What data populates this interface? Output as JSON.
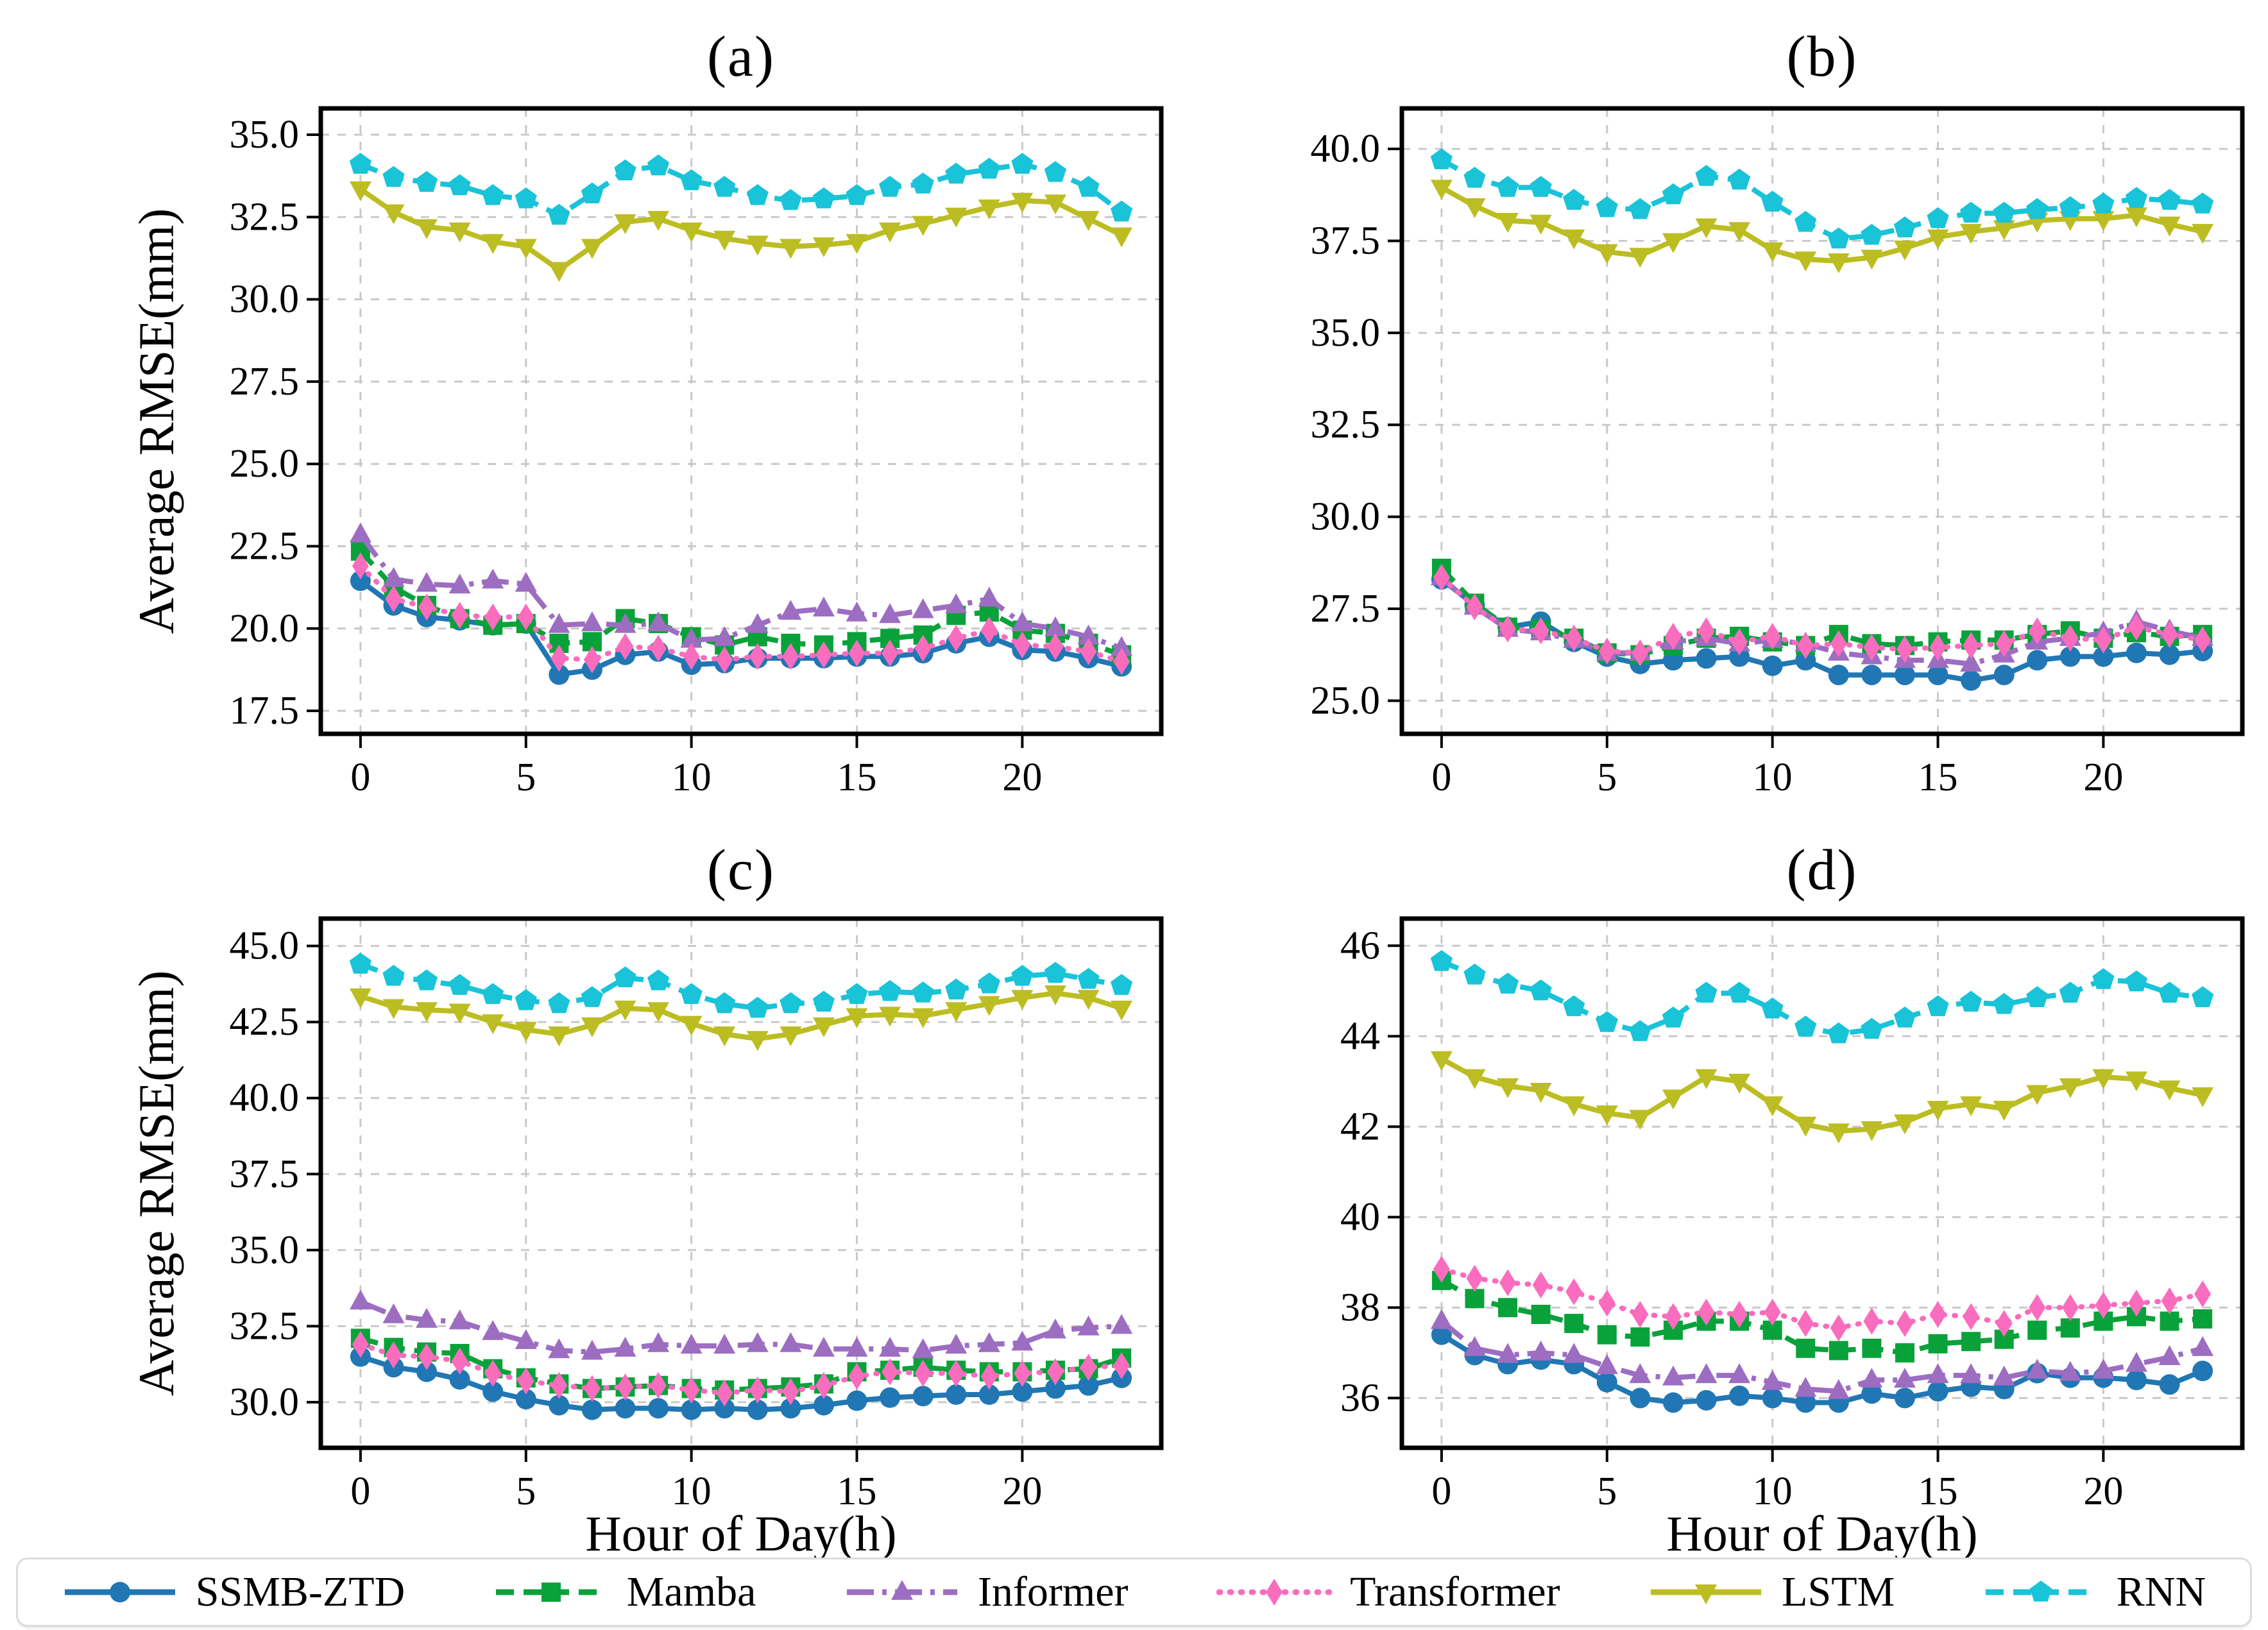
{
  "page": {
    "background": "#ffffff",
    "grid_color": "#c9c9c9",
    "axis_color": "#000000"
  },
  "axis_titles": {
    "ylabel": "Average RMSE(mm)",
    "xlabel": "Hour of Day(h)"
  },
  "series_defs": [
    {
      "name": "SSMB-ZTD",
      "color": "#2077b4",
      "linestyle": "solid",
      "marker": "circle"
    },
    {
      "name": "Mamba",
      "color": "#09a23a",
      "linestyle": "dashed",
      "marker": "square"
    },
    {
      "name": "Informer",
      "color": "#9d6dc2",
      "linestyle": "dashdot",
      "marker": "triangle-up"
    },
    {
      "name": "Transformer",
      "color": "#fa6cbd",
      "linestyle": "dotted",
      "marker": "diamond"
    },
    {
      "name": "LSTM",
      "color": "#bcbd22",
      "linestyle": "solid",
      "marker": "triangle-down"
    },
    {
      "name": "RNN",
      "color": "#19c3d8",
      "linestyle": "dashed",
      "marker": "pentagon"
    }
  ],
  "legend": {
    "items": [
      "SSMB-ZTD",
      "Mamba",
      "Informer",
      "Transformer",
      "LSTM",
      "RNN"
    ]
  },
  "chart_data": [
    {
      "type": "line",
      "title": "(a)",
      "ylabel": "Average RMSE(mm)",
      "xlabel": "",
      "x": [
        0,
        1,
        2,
        3,
        4,
        5,
        6,
        7,
        8,
        9,
        10,
        11,
        12,
        13,
        14,
        15,
        16,
        17,
        18,
        19,
        20,
        21,
        22,
        23
      ],
      "xlim": [
        -1.2,
        24.2
      ],
      "xticks": [
        0,
        5,
        10,
        15,
        20
      ],
      "xtick_labels": [
        "0",
        "5",
        "10",
        "15",
        "20"
      ],
      "ylim": [
        16.8,
        35.8
      ],
      "yticks": [
        17.5,
        20.0,
        22.5,
        25.0,
        27.5,
        30.0,
        32.5,
        35.0
      ],
      "ytick_labels": [
        "17.5",
        "20.0",
        "22.5",
        "25.0",
        "27.5",
        "30.0",
        "32.5",
        "35.0"
      ],
      "grid": true,
      "series": [
        {
          "name": "SSMB-ZTD",
          "values": [
            21.45,
            20.7,
            20.35,
            20.25,
            20.1,
            20.15,
            18.6,
            18.75,
            19.2,
            19.3,
            18.9,
            18.95,
            19.1,
            19.1,
            19.1,
            19.15,
            19.15,
            19.25,
            19.55,
            19.75,
            19.35,
            19.3,
            19.1,
            18.85
          ]
        },
        {
          "name": "Mamba",
          "values": [
            22.35,
            21.25,
            20.7,
            20.3,
            20.1,
            20.15,
            19.55,
            19.6,
            20.3,
            20.15,
            19.75,
            19.5,
            19.75,
            19.55,
            19.5,
            19.6,
            19.7,
            19.8,
            20.4,
            20.5,
            19.95,
            19.85,
            19.55,
            19.2
          ]
        },
        {
          "name": "Informer",
          "values": [
            22.85,
            21.5,
            21.35,
            21.3,
            21.45,
            21.35,
            20.1,
            20.15,
            20.1,
            20.15,
            19.65,
            19.7,
            20.1,
            20.5,
            20.6,
            20.45,
            20.4,
            20.55,
            20.7,
            20.9,
            20.15,
            20.0,
            19.75,
            19.4
          ]
        },
        {
          "name": "Transformer",
          "values": [
            21.9,
            20.9,
            20.65,
            20.4,
            20.35,
            20.35,
            19.1,
            19.05,
            19.45,
            19.4,
            19.15,
            19.05,
            19.15,
            19.15,
            19.2,
            19.25,
            19.25,
            19.4,
            19.7,
            19.95,
            19.5,
            19.45,
            19.3,
            19.0
          ]
        },
        {
          "name": "LSTM",
          "values": [
            33.35,
            32.65,
            32.2,
            32.1,
            31.75,
            31.6,
            30.9,
            31.6,
            32.35,
            32.45,
            32.1,
            31.85,
            31.7,
            31.6,
            31.65,
            31.75,
            32.1,
            32.3,
            32.55,
            32.8,
            33.0,
            32.95,
            32.45,
            31.95
          ]
        },
        {
          "name": "RNN",
          "values": [
            34.1,
            33.7,
            33.55,
            33.45,
            33.15,
            33.05,
            32.55,
            33.2,
            33.9,
            34.05,
            33.6,
            33.4,
            33.15,
            33.0,
            33.05,
            33.15,
            33.4,
            33.5,
            33.8,
            33.95,
            34.1,
            33.85,
            33.4,
            32.65
          ]
        }
      ]
    },
    {
      "type": "line",
      "title": "(b)",
      "ylabel": "",
      "xlabel": "",
      "x": [
        0,
        1,
        2,
        3,
        4,
        5,
        6,
        7,
        8,
        9,
        10,
        11,
        12,
        13,
        14,
        15,
        16,
        17,
        18,
        19,
        20,
        21,
        22,
        23
      ],
      "xlim": [
        -1.2,
        24.2
      ],
      "xticks": [
        0,
        5,
        10,
        15,
        20
      ],
      "xtick_labels": [
        "0",
        "5",
        "10",
        "15",
        "20"
      ],
      "ylim": [
        24.1,
        41.1
      ],
      "yticks": [
        25.0,
        27.5,
        30.0,
        32.5,
        35.0,
        37.5,
        40.0
      ],
      "ytick_labels": [
        "25.0",
        "27.5",
        "30.0",
        "32.5",
        "35.0",
        "37.5",
        "40.0"
      ],
      "grid": true,
      "series": [
        {
          "name": "SSMB-ZTD",
          "values": [
            28.3,
            27.6,
            27.0,
            27.15,
            26.6,
            26.2,
            26.0,
            26.1,
            26.15,
            26.2,
            25.95,
            26.1,
            25.7,
            25.7,
            25.7,
            25.7,
            25.55,
            25.7,
            26.1,
            26.2,
            26.2,
            26.3,
            26.25,
            26.35
          ]
        },
        {
          "name": "Mamba",
          "values": [
            28.6,
            27.65,
            27.0,
            26.95,
            26.7,
            26.3,
            26.25,
            26.5,
            26.7,
            26.75,
            26.6,
            26.5,
            26.8,
            26.55,
            26.5,
            26.6,
            26.65,
            26.65,
            26.8,
            26.9,
            26.7,
            26.85,
            26.75,
            26.8
          ]
        },
        {
          "name": "Informer",
          "values": [
            28.35,
            27.55,
            26.95,
            26.85,
            26.65,
            26.3,
            26.3,
            26.6,
            26.7,
            26.55,
            26.65,
            26.55,
            26.3,
            26.2,
            26.1,
            26.1,
            26.0,
            26.25,
            26.6,
            26.7,
            26.85,
            27.15,
            26.9,
            26.7
          ]
        },
        {
          "name": "Transformer",
          "values": [
            28.35,
            27.55,
            26.95,
            26.9,
            26.7,
            26.35,
            26.3,
            26.75,
            26.9,
            26.6,
            26.75,
            26.5,
            26.55,
            26.45,
            26.4,
            26.45,
            26.5,
            26.55,
            26.9,
            26.7,
            26.65,
            27.0,
            26.8,
            26.65
          ]
        },
        {
          "name": "LSTM",
          "values": [
            38.95,
            38.45,
            38.05,
            38.0,
            37.6,
            37.2,
            37.1,
            37.5,
            37.9,
            37.8,
            37.25,
            37.0,
            36.95,
            37.05,
            37.3,
            37.6,
            37.75,
            37.85,
            38.05,
            38.1,
            38.1,
            38.2,
            37.95,
            37.75
          ]
        },
        {
          "name": "RNN",
          "values": [
            39.7,
            39.2,
            38.95,
            38.95,
            38.6,
            38.4,
            38.35,
            38.75,
            39.25,
            39.15,
            38.55,
            38.0,
            37.55,
            37.65,
            37.85,
            38.1,
            38.25,
            38.25,
            38.35,
            38.4,
            38.5,
            38.65,
            38.6,
            38.5
          ]
        }
      ]
    },
    {
      "type": "line",
      "title": "(c)",
      "ylabel": "Average RMSE(mm)",
      "xlabel": "Hour of Day(h)",
      "x": [
        0,
        1,
        2,
        3,
        4,
        5,
        6,
        7,
        8,
        9,
        10,
        11,
        12,
        13,
        14,
        15,
        16,
        17,
        18,
        19,
        20,
        21,
        22,
        23
      ],
      "xlim": [
        -1.2,
        24.2
      ],
      "xticks": [
        0,
        5,
        10,
        15,
        20
      ],
      "xtick_labels": [
        "0",
        "5",
        "10",
        "15",
        "20"
      ],
      "ylim": [
        28.5,
        45.9
      ],
      "yticks": [
        30.0,
        32.5,
        35.0,
        37.5,
        40.0,
        42.5,
        45.0
      ],
      "ytick_labels": [
        "30.0",
        "32.5",
        "35.0",
        "37.5",
        "40.0",
        "42.5",
        "45.0"
      ],
      "grid": true,
      "series": [
        {
          "name": "SSMB-ZTD",
          "values": [
            31.5,
            31.15,
            31.0,
            30.75,
            30.35,
            30.1,
            29.9,
            29.75,
            29.8,
            29.8,
            29.75,
            29.8,
            29.75,
            29.8,
            29.9,
            30.05,
            30.15,
            30.2,
            30.25,
            30.25,
            30.35,
            30.45,
            30.55,
            30.8
          ]
        },
        {
          "name": "Mamba",
          "values": [
            32.1,
            31.8,
            31.65,
            31.6,
            31.1,
            30.8,
            30.6,
            30.45,
            30.5,
            30.55,
            30.45,
            30.4,
            30.45,
            30.5,
            30.6,
            31.0,
            31.05,
            31.15,
            31.05,
            31.0,
            31.0,
            31.05,
            31.1,
            31.45
          ]
        },
        {
          "name": "Informer",
          "values": [
            33.3,
            32.85,
            32.7,
            32.65,
            32.3,
            32.0,
            31.7,
            31.65,
            31.75,
            31.9,
            31.85,
            31.85,
            31.9,
            31.9,
            31.75,
            31.75,
            31.75,
            31.7,
            31.85,
            31.9,
            31.95,
            32.35,
            32.45,
            32.5
          ]
        },
        {
          "name": "Transformer",
          "values": [
            31.9,
            31.55,
            31.5,
            31.35,
            30.95,
            30.7,
            30.55,
            30.45,
            30.5,
            30.55,
            30.4,
            30.3,
            30.4,
            30.35,
            30.55,
            30.85,
            31.0,
            30.95,
            30.95,
            30.85,
            30.95,
            31.0,
            31.15,
            31.2
          ]
        },
        {
          "name": "LSTM",
          "values": [
            43.35,
            43.0,
            42.9,
            42.85,
            42.5,
            42.25,
            42.1,
            42.4,
            42.95,
            42.9,
            42.45,
            42.1,
            41.95,
            42.1,
            42.4,
            42.7,
            42.75,
            42.7,
            42.9,
            43.1,
            43.3,
            43.45,
            43.3,
            42.95
          ]
        },
        {
          "name": "RNN",
          "values": [
            44.4,
            44.0,
            43.85,
            43.7,
            43.4,
            43.2,
            43.1,
            43.3,
            43.95,
            43.85,
            43.4,
            43.1,
            42.95,
            43.1,
            43.15,
            43.4,
            43.5,
            43.45,
            43.55,
            43.75,
            44.0,
            44.1,
            43.9,
            43.7
          ]
        }
      ]
    },
    {
      "type": "line",
      "title": "(d)",
      "ylabel": "",
      "xlabel": "Hour of Day(h)",
      "x": [
        0,
        1,
        2,
        3,
        4,
        5,
        6,
        7,
        8,
        9,
        10,
        11,
        12,
        13,
        14,
        15,
        16,
        17,
        18,
        19,
        20,
        21,
        22,
        23
      ],
      "xlim": [
        -1.2,
        24.2
      ],
      "xticks": [
        0,
        5,
        10,
        15,
        20
      ],
      "xtick_labels": [
        "0",
        "5",
        "10",
        "15",
        "20"
      ],
      "ylim": [
        34.9,
        46.6
      ],
      "yticks": [
        36,
        38,
        40,
        42,
        44,
        46
      ],
      "ytick_labels": [
        "36",
        "38",
        "40",
        "42",
        "44",
        "46"
      ],
      "grid": true,
      "series": [
        {
          "name": "SSMB-ZTD",
          "values": [
            37.4,
            36.95,
            36.75,
            36.85,
            36.75,
            36.35,
            36.0,
            35.9,
            35.95,
            36.05,
            36.0,
            35.9,
            35.9,
            36.1,
            36.0,
            36.15,
            36.25,
            36.2,
            36.55,
            36.45,
            36.45,
            36.4,
            36.3,
            36.6
          ]
        },
        {
          "name": "Mamba",
          "values": [
            38.6,
            38.2,
            38.0,
            37.85,
            37.65,
            37.4,
            37.35,
            37.5,
            37.7,
            37.7,
            37.5,
            37.1,
            37.05,
            37.1,
            37.0,
            37.2,
            37.25,
            37.3,
            37.5,
            37.55,
            37.7,
            37.8,
            37.7,
            37.75
          ]
        },
        {
          "name": "Informer",
          "values": [
            37.7,
            37.1,
            36.95,
            37.0,
            36.95,
            36.7,
            36.5,
            36.45,
            36.5,
            36.5,
            36.35,
            36.2,
            36.15,
            36.4,
            36.4,
            36.5,
            36.5,
            36.45,
            36.6,
            36.55,
            36.6,
            36.75,
            36.9,
            37.1
          ]
        },
        {
          "name": "Transformer",
          "values": [
            38.85,
            38.65,
            38.55,
            38.5,
            38.35,
            38.1,
            37.85,
            37.8,
            37.9,
            37.85,
            37.9,
            37.65,
            37.55,
            37.7,
            37.65,
            37.85,
            37.8,
            37.65,
            38.0,
            38.0,
            38.05,
            38.1,
            38.15,
            38.3
          ]
        },
        {
          "name": "LSTM",
          "values": [
            43.5,
            43.1,
            42.9,
            42.8,
            42.5,
            42.3,
            42.2,
            42.65,
            43.1,
            43.0,
            42.5,
            42.05,
            41.9,
            41.95,
            42.1,
            42.4,
            42.5,
            42.4,
            42.75,
            42.9,
            43.1,
            43.05,
            42.85,
            42.7
          ]
        },
        {
          "name": "RNN",
          "values": [
            45.65,
            45.35,
            45.15,
            45.0,
            44.65,
            44.3,
            44.1,
            44.4,
            44.95,
            44.95,
            44.6,
            44.2,
            44.05,
            44.15,
            44.4,
            44.65,
            44.75,
            44.7,
            44.85,
            44.95,
            45.25,
            45.2,
            44.95,
            44.85
          ]
        }
      ]
    }
  ]
}
